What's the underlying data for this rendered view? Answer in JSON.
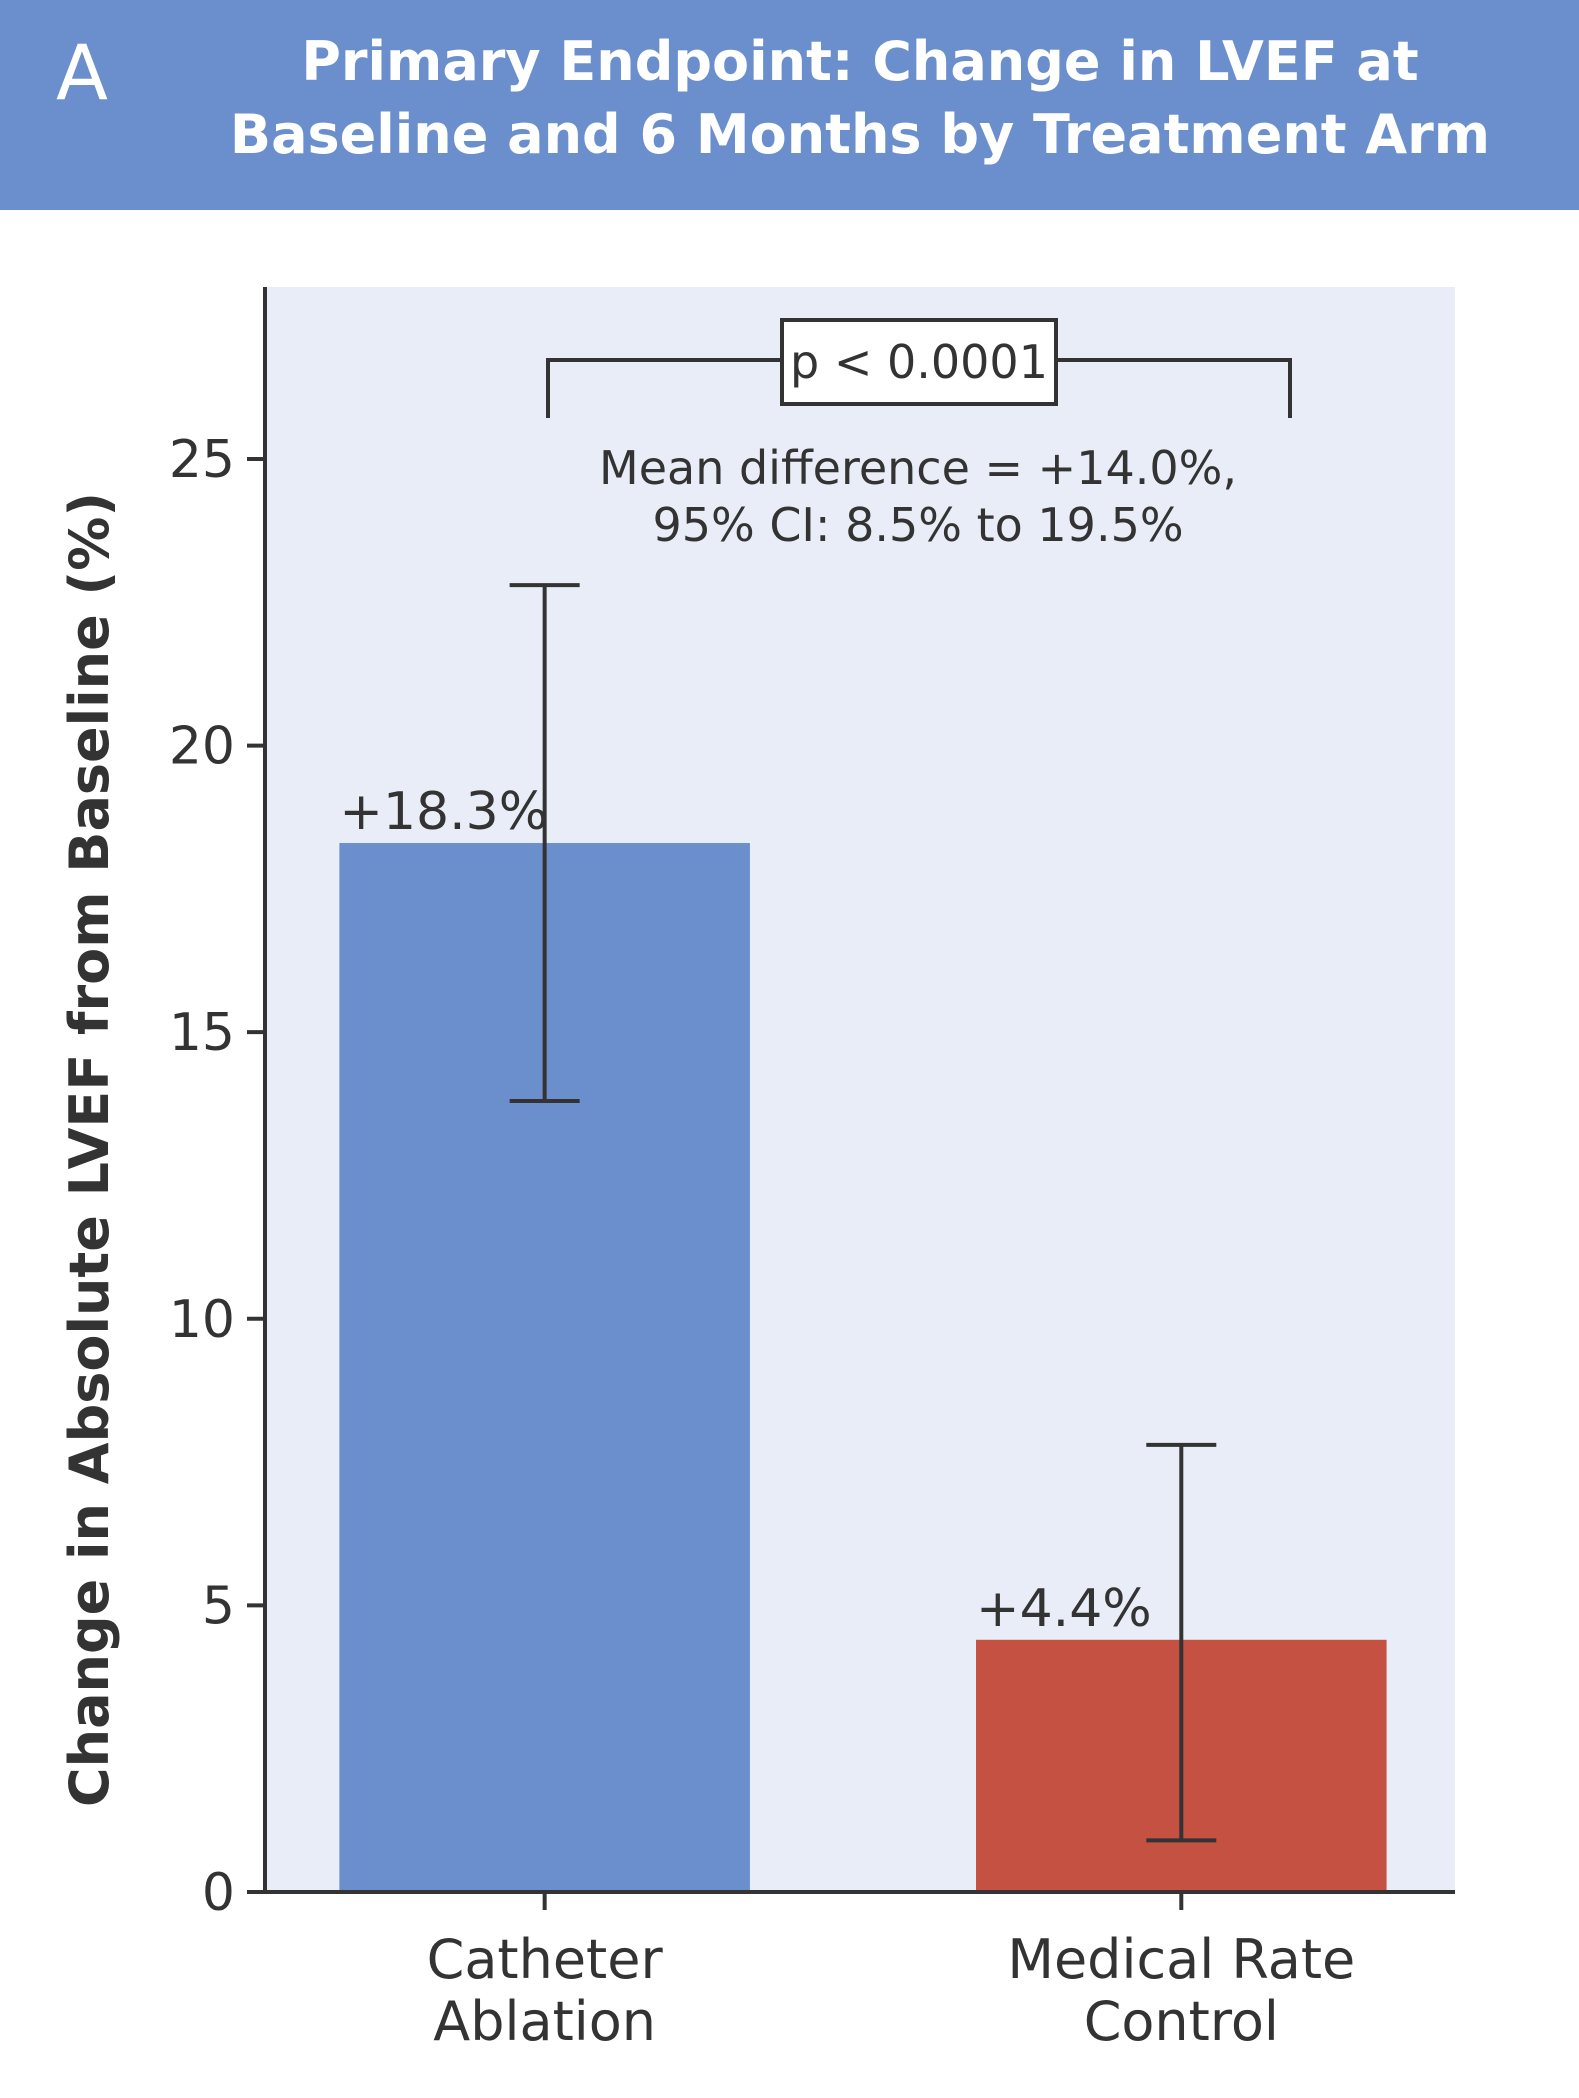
{
  "panel_label": "A",
  "chart_data": {
    "type": "bar",
    "title_lines": [
      "Primary Endpoint: Change in LVEF at",
      "Baseline and 6 Months by Treatment Arm"
    ],
    "categories": [
      [
        "Catheter",
        "Ablation"
      ],
      [
        "Medical Rate",
        "Control"
      ]
    ],
    "values": [
      18.3,
      4.4
    ],
    "value_labels": [
      "+18.3%",
      "+4.4%"
    ],
    "error_bars": [
      [
        13.8,
        22.8
      ],
      [
        0.9,
        7.8
      ]
    ],
    "bar_colors": [
      "#6b8fcd",
      "#c45141"
    ],
    "ylabel": "Change in Absolute LVEF from Baseline (%)",
    "xlabel": "",
    "ylim": [
      0,
      28
    ],
    "yticks": [
      0,
      5,
      10,
      15,
      20,
      25
    ],
    "background_color": "#e9edf7",
    "grid": false,
    "annotation": {
      "p_value": "p < 0.0001",
      "lines": [
        "Mean difference = +14.0%,",
        "95% CI: 8.5% to 19.5%"
      ]
    }
  }
}
